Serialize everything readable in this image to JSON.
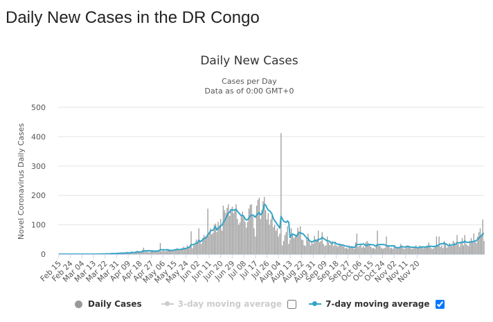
{
  "page": {
    "title": "Daily New Cases in the DR Congo"
  },
  "chart_data": {
    "type": "bar",
    "title": "Daily New Cases",
    "subtitle_line1": "Cases per Day",
    "subtitle_line2": "Data as of 0:00 GMT+0",
    "ylabel": "Novel Coronavirus Daily Cases",
    "ylim": [
      0,
      500
    ],
    "yticks": [
      0,
      100,
      200,
      300,
      400,
      500
    ],
    "grid": true,
    "start_date": "Feb 15",
    "x_tick_labels": [
      "Feb 15",
      "Feb 24",
      "Mar 04",
      "Mar 13",
      "Mar 22",
      "Mar 31",
      "Apr 09",
      "Apr 18",
      "Apr 27",
      "May 06",
      "May 15",
      "May 24",
      "Jun 02",
      "Jun 11",
      "Jun 20",
      "Jun 29",
      "Jul 08",
      "Jul 17",
      "Jul 26",
      "Aug 04",
      "Aug 13",
      "Aug 22",
      "Aug 31",
      "Sep 09",
      "Sep 18",
      "Sep 27",
      "Oct 06",
      "Oct 15",
      "Oct 24",
      "Nov 02",
      "Nov 11",
      "Nov 20"
    ],
    "legend_position": "bottom",
    "series": [
      {
        "name": "Daily Cases",
        "kind": "bar",
        "color": "#999999",
        "values": [
          0,
          0,
          0,
          0,
          0,
          0,
          0,
          0,
          0,
          0,
          0,
          0,
          0,
          0,
          0,
          0,
          0,
          0,
          0,
          0,
          0,
          0,
          0,
          0,
          0,
          0,
          0,
          0,
          0,
          1,
          0,
          2,
          0,
          1,
          0,
          0,
          2,
          3,
          1,
          0,
          2,
          4,
          2,
          1,
          2,
          3,
          5,
          2,
          6,
          4,
          2,
          3,
          3,
          8,
          5,
          3,
          8,
          9,
          2,
          5,
          10,
          12,
          6,
          8,
          8,
          14,
          22,
          10,
          8,
          12,
          6,
          8,
          12,
          14,
          10,
          12,
          11,
          10,
          13,
          38,
          9,
          12,
          11,
          10,
          12,
          14,
          16,
          15,
          13,
          14,
          16,
          18,
          20,
          15,
          12,
          18,
          20,
          25,
          22,
          22,
          30,
          24,
          28,
          78,
          20,
          30,
          32,
          50,
          38,
          88,
          42,
          35,
          55,
          65,
          60,
          58,
          155,
          70,
          88,
          68,
          72,
          100,
          104,
          75,
          110,
          98,
          120,
          80,
          165,
          150,
          140,
          158,
          170,
          130,
          148,
          162,
          140,
          150,
          170,
          120,
          100,
          108,
          132,
          145,
          128,
          110,
          90,
          110,
          155,
          168,
          170,
          130,
          88,
          60,
          165,
          185,
          192,
          120,
          150,
          180,
          195,
          150,
          118,
          140,
          100,
          118,
          130,
          92,
          100,
          80,
          88,
          60,
          70,
          412,
          30,
          45,
          65,
          75,
          95,
          35,
          50,
          88,
          70,
          55,
          60,
          65,
          90,
          78,
          95,
          50,
          48,
          30,
          28,
          55,
          70,
          42,
          30,
          40,
          35,
          62,
          48,
          52,
          80,
          40,
          45,
          75,
          35,
          28,
          30,
          60,
          40,
          30,
          40,
          45,
          28,
          38,
          30,
          25,
          30,
          35,
          32,
          28,
          25,
          20,
          22,
          18,
          30,
          25,
          28,
          22,
          18,
          40,
          70,
          25,
          28,
          32,
          22,
          28,
          22,
          40,
          45,
          38,
          32,
          25,
          20,
          22,
          18,
          32,
          80,
          30,
          28,
          22,
          18,
          20,
          22,
          60,
          30,
          25,
          20,
          22,
          18,
          28,
          22,
          20,
          22,
          24,
          35,
          30,
          20,
          18,
          25,
          30,
          28,
          25,
          20,
          18,
          20,
          22,
          30,
          20,
          25,
          30,
          22,
          25,
          20,
          22,
          28,
          30,
          40,
          25,
          20,
          18,
          22,
          25,
          60,
          28,
          60,
          25,
          30,
          20,
          45,
          35,
          22,
          25,
          38,
          30,
          28,
          45,
          40,
          30,
          65,
          35,
          25,
          40,
          55,
          30,
          65,
          35,
          30,
          28,
          45,
          55,
          40,
          70,
          45,
          38,
          60,
          75,
          88,
          65,
          118,
          45
        ]
      },
      {
        "name": "3-day moving average",
        "kind": "line",
        "color": "#cccccc",
        "enabled": false
      },
      {
        "name": "7-day moving average",
        "kind": "line",
        "color": "#33a3c7",
        "enabled": true
      }
    ]
  }
}
